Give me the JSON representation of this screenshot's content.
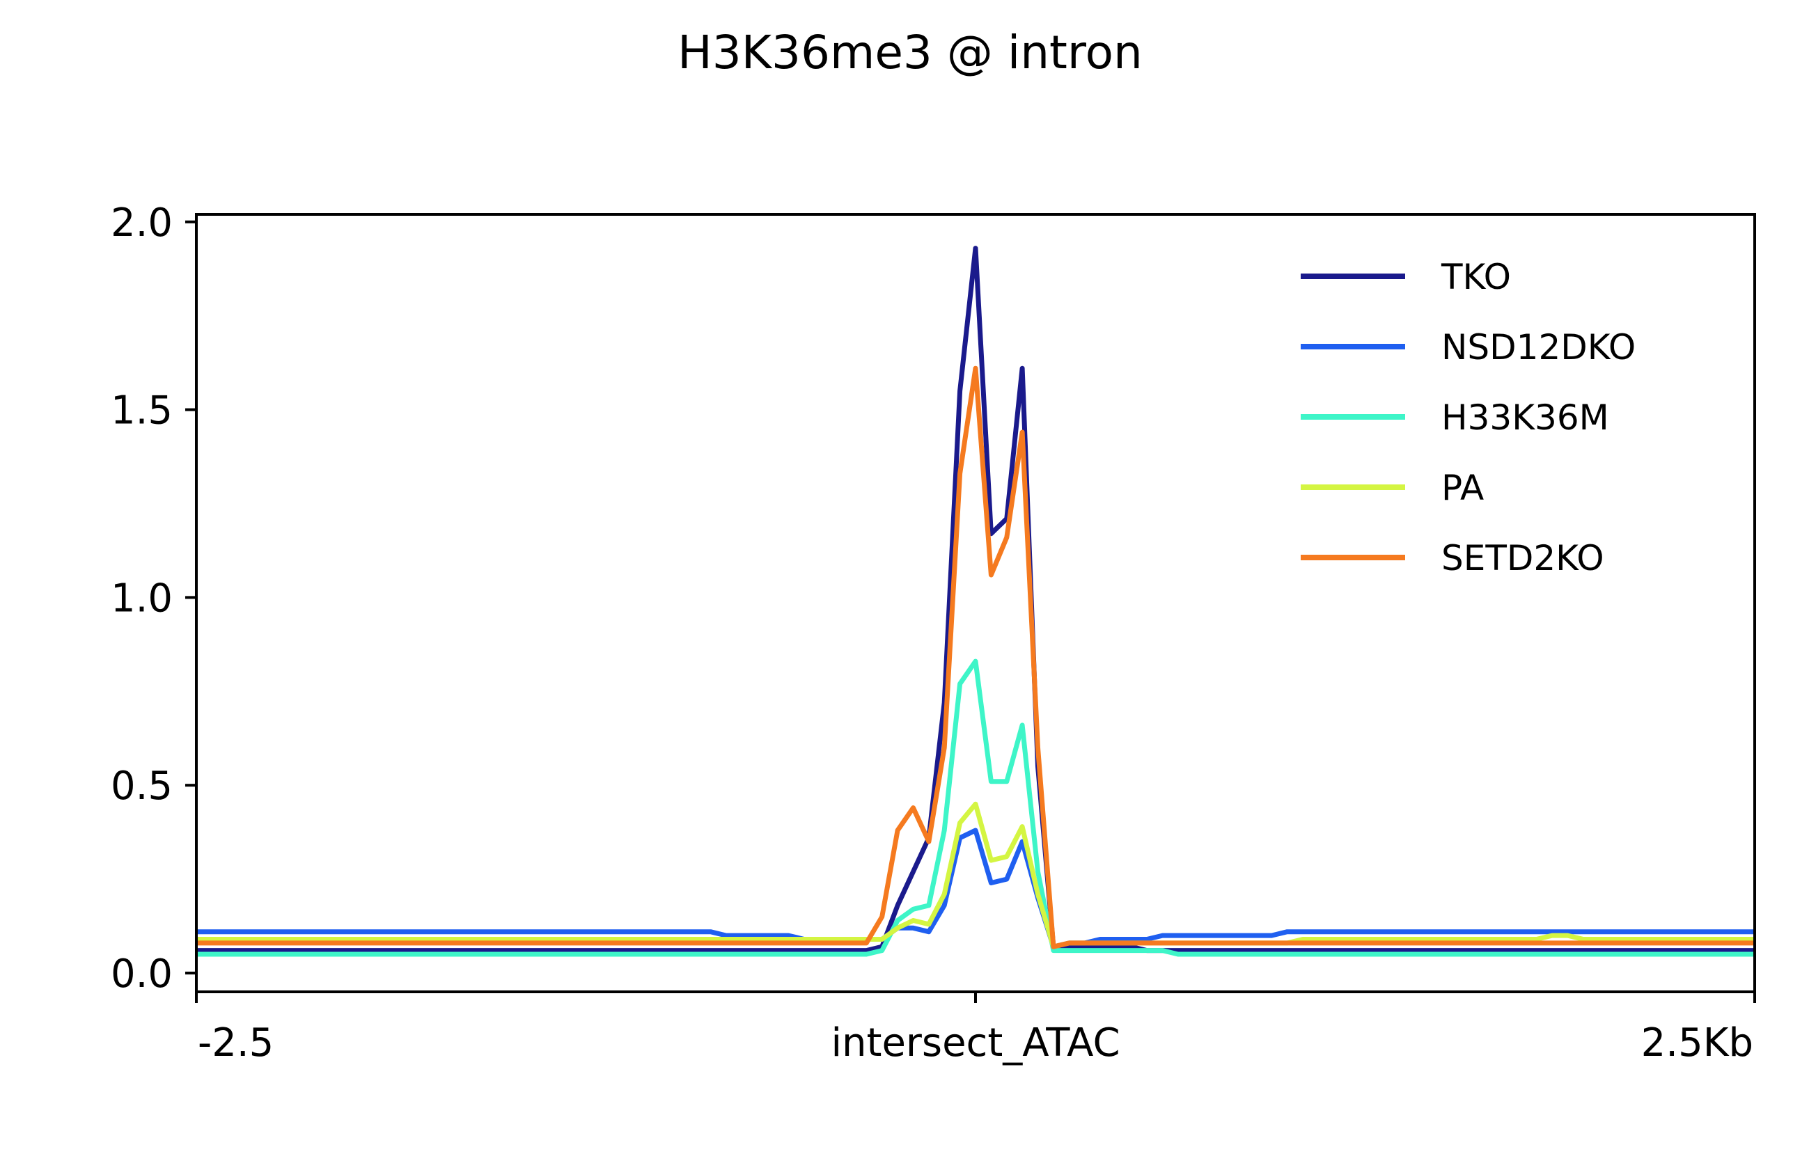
{
  "chart_data": {
    "type": "line",
    "title": "H3K36me3 @ intron",
    "xlabel": "",
    "ylabel": "",
    "ylim": [
      -0.05,
      2.02
    ],
    "yticks": [
      "0.0",
      "0.5",
      "1.0",
      "1.5",
      "2.0"
    ],
    "xticks": [
      {
        "pos": -2.5,
        "label": "-2.5"
      },
      {
        "pos": 0,
        "label": "intersect_ATAC"
      },
      {
        "pos": 2.5,
        "label": "2.5Kb"
      }
    ],
    "xlim": [
      -2.5,
      2.5
    ],
    "legend_position": "top-right",
    "grid": false,
    "x": [
      -2.5,
      -2.45,
      -2.4,
      -2.35,
      -2.3,
      -2.25,
      -2.2,
      -2.15,
      -2.1,
      -2.05,
      -2.0,
      -1.95,
      -1.9,
      -1.85,
      -1.8,
      -1.75,
      -1.7,
      -1.65,
      -1.6,
      -1.55,
      -1.5,
      -1.45,
      -1.4,
      -1.35,
      -1.3,
      -1.25,
      -1.2,
      -1.15,
      -1.1,
      -1.05,
      -1.0,
      -0.95,
      -0.9,
      -0.85,
      -0.8,
      -0.75,
      -0.7,
      -0.65,
      -0.6,
      -0.55,
      -0.5,
      -0.45,
      -0.4,
      -0.35,
      -0.3,
      -0.25,
      -0.2,
      -0.15,
      -0.1,
      -0.05,
      0.0,
      0.05,
      0.1,
      0.15,
      0.2,
      0.25,
      0.3,
      0.35,
      0.4,
      0.45,
      0.5,
      0.55,
      0.6,
      0.65,
      0.7,
      0.75,
      0.8,
      0.85,
      0.9,
      0.95,
      1.0,
      1.05,
      1.1,
      1.15,
      1.2,
      1.25,
      1.3,
      1.35,
      1.4,
      1.45,
      1.5,
      1.55,
      1.6,
      1.65,
      1.7,
      1.75,
      1.8,
      1.85,
      1.9,
      1.95,
      2.0,
      2.05,
      2.1,
      2.15,
      2.2,
      2.25,
      2.3,
      2.35,
      2.4,
      2.45,
      2.5
    ],
    "series": [
      {
        "name": "TKO",
        "color": "#1a1a8c",
        "values": [
          0.06,
          0.06,
          0.06,
          0.06,
          0.06,
          0.06,
          0.06,
          0.06,
          0.06,
          0.06,
          0.06,
          0.06,
          0.06,
          0.06,
          0.06,
          0.06,
          0.06,
          0.06,
          0.06,
          0.06,
          0.06,
          0.06,
          0.06,
          0.06,
          0.06,
          0.06,
          0.06,
          0.06,
          0.06,
          0.06,
          0.06,
          0.06,
          0.06,
          0.06,
          0.06,
          0.06,
          0.06,
          0.06,
          0.06,
          0.06,
          0.06,
          0.06,
          0.06,
          0.06,
          0.07,
          0.18,
          0.27,
          0.36,
          0.72,
          1.55,
          1.93,
          1.17,
          1.21,
          1.61,
          0.55,
          0.07,
          0.07,
          0.07,
          0.07,
          0.07,
          0.07,
          0.06,
          0.06,
          0.06,
          0.06,
          0.06,
          0.06,
          0.06,
          0.06,
          0.06,
          0.06,
          0.06,
          0.06,
          0.06,
          0.06,
          0.06,
          0.06,
          0.06,
          0.06,
          0.06,
          0.06,
          0.06,
          0.06,
          0.06,
          0.06,
          0.06,
          0.06,
          0.06,
          0.06,
          0.06,
          0.06,
          0.06,
          0.06,
          0.06,
          0.06,
          0.06,
          0.06,
          0.06,
          0.06,
          0.06,
          0.06
        ]
      },
      {
        "name": "NSD12DKO",
        "color": "#1f5ff0",
        "values": [
          0.11,
          0.11,
          0.11,
          0.11,
          0.11,
          0.11,
          0.11,
          0.11,
          0.11,
          0.11,
          0.11,
          0.11,
          0.11,
          0.11,
          0.11,
          0.11,
          0.11,
          0.11,
          0.11,
          0.11,
          0.11,
          0.11,
          0.11,
          0.11,
          0.11,
          0.11,
          0.11,
          0.11,
          0.11,
          0.11,
          0.11,
          0.11,
          0.11,
          0.11,
          0.1,
          0.1,
          0.1,
          0.1,
          0.1,
          0.09,
          0.09,
          0.09,
          0.09,
          0.09,
          0.09,
          0.12,
          0.12,
          0.11,
          0.18,
          0.36,
          0.38,
          0.24,
          0.25,
          0.35,
          0.2,
          0.07,
          0.08,
          0.08,
          0.09,
          0.09,
          0.09,
          0.09,
          0.1,
          0.1,
          0.1,
          0.1,
          0.1,
          0.1,
          0.1,
          0.1,
          0.11,
          0.11,
          0.11,
          0.11,
          0.11,
          0.11,
          0.11,
          0.11,
          0.11,
          0.11,
          0.11,
          0.11,
          0.11,
          0.11,
          0.11,
          0.11,
          0.11,
          0.11,
          0.11,
          0.11,
          0.11,
          0.11,
          0.11,
          0.11,
          0.11,
          0.11,
          0.11,
          0.11,
          0.11,
          0.11,
          0.11
        ]
      },
      {
        "name": "H33K36M",
        "color": "#3ef5c8",
        "values": [
          0.05,
          0.05,
          0.05,
          0.05,
          0.05,
          0.05,
          0.05,
          0.05,
          0.05,
          0.05,
          0.05,
          0.05,
          0.05,
          0.05,
          0.05,
          0.05,
          0.05,
          0.05,
          0.05,
          0.05,
          0.05,
          0.05,
          0.05,
          0.05,
          0.05,
          0.05,
          0.05,
          0.05,
          0.05,
          0.05,
          0.05,
          0.05,
          0.05,
          0.05,
          0.05,
          0.05,
          0.05,
          0.05,
          0.05,
          0.05,
          0.05,
          0.05,
          0.05,
          0.05,
          0.06,
          0.14,
          0.17,
          0.18,
          0.38,
          0.77,
          0.83,
          0.51,
          0.51,
          0.66,
          0.27,
          0.06,
          0.06,
          0.06,
          0.06,
          0.06,
          0.06,
          0.06,
          0.06,
          0.05,
          0.05,
          0.05,
          0.05,
          0.05,
          0.05,
          0.05,
          0.05,
          0.05,
          0.05,
          0.05,
          0.05,
          0.05,
          0.05,
          0.05,
          0.05,
          0.05,
          0.05,
          0.05,
          0.05,
          0.05,
          0.05,
          0.05,
          0.05,
          0.05,
          0.05,
          0.05,
          0.05,
          0.05,
          0.05,
          0.05,
          0.05,
          0.05,
          0.05,
          0.05,
          0.05,
          0.05,
          0.05
        ]
      },
      {
        "name": "PA",
        "color": "#d4f542",
        "values": [
          0.09,
          0.09,
          0.09,
          0.09,
          0.09,
          0.09,
          0.09,
          0.09,
          0.09,
          0.09,
          0.09,
          0.09,
          0.09,
          0.09,
          0.09,
          0.09,
          0.09,
          0.09,
          0.09,
          0.09,
          0.09,
          0.09,
          0.09,
          0.09,
          0.09,
          0.09,
          0.09,
          0.09,
          0.09,
          0.09,
          0.09,
          0.09,
          0.09,
          0.09,
          0.09,
          0.09,
          0.09,
          0.09,
          0.09,
          0.09,
          0.09,
          0.09,
          0.09,
          0.09,
          0.09,
          0.12,
          0.14,
          0.13,
          0.21,
          0.4,
          0.45,
          0.3,
          0.31,
          0.39,
          0.21,
          0.07,
          0.08,
          0.08,
          0.08,
          0.08,
          0.08,
          0.08,
          0.08,
          0.08,
          0.08,
          0.08,
          0.08,
          0.08,
          0.08,
          0.08,
          0.08,
          0.09,
          0.09,
          0.09,
          0.09,
          0.09,
          0.09,
          0.09,
          0.09,
          0.09,
          0.09,
          0.09,
          0.09,
          0.09,
          0.09,
          0.09,
          0.09,
          0.1,
          0.1,
          0.09,
          0.09,
          0.09,
          0.09,
          0.09,
          0.09,
          0.09,
          0.09,
          0.09,
          0.09,
          0.09,
          0.09
        ]
      },
      {
        "name": "SETD2KO",
        "color": "#f57a1f",
        "values": [
          0.08,
          0.08,
          0.08,
          0.08,
          0.08,
          0.08,
          0.08,
          0.08,
          0.08,
          0.08,
          0.08,
          0.08,
          0.08,
          0.08,
          0.08,
          0.08,
          0.08,
          0.08,
          0.08,
          0.08,
          0.08,
          0.08,
          0.08,
          0.08,
          0.08,
          0.08,
          0.08,
          0.08,
          0.08,
          0.08,
          0.08,
          0.08,
          0.08,
          0.08,
          0.08,
          0.08,
          0.08,
          0.08,
          0.08,
          0.08,
          0.08,
          0.08,
          0.08,
          0.08,
          0.15,
          0.38,
          0.44,
          0.35,
          0.6,
          1.33,
          1.61,
          1.06,
          1.16,
          1.44,
          0.6,
          0.07,
          0.08,
          0.08,
          0.08,
          0.08,
          0.08,
          0.08,
          0.08,
          0.08,
          0.08,
          0.08,
          0.08,
          0.08,
          0.08,
          0.08,
          0.08,
          0.08,
          0.08,
          0.08,
          0.08,
          0.08,
          0.08,
          0.08,
          0.08,
          0.08,
          0.08,
          0.08,
          0.08,
          0.08,
          0.08,
          0.08,
          0.08,
          0.08,
          0.08,
          0.08,
          0.08,
          0.08,
          0.08,
          0.08,
          0.08,
          0.08,
          0.08,
          0.08,
          0.08,
          0.08,
          0.08
        ]
      }
    ]
  }
}
